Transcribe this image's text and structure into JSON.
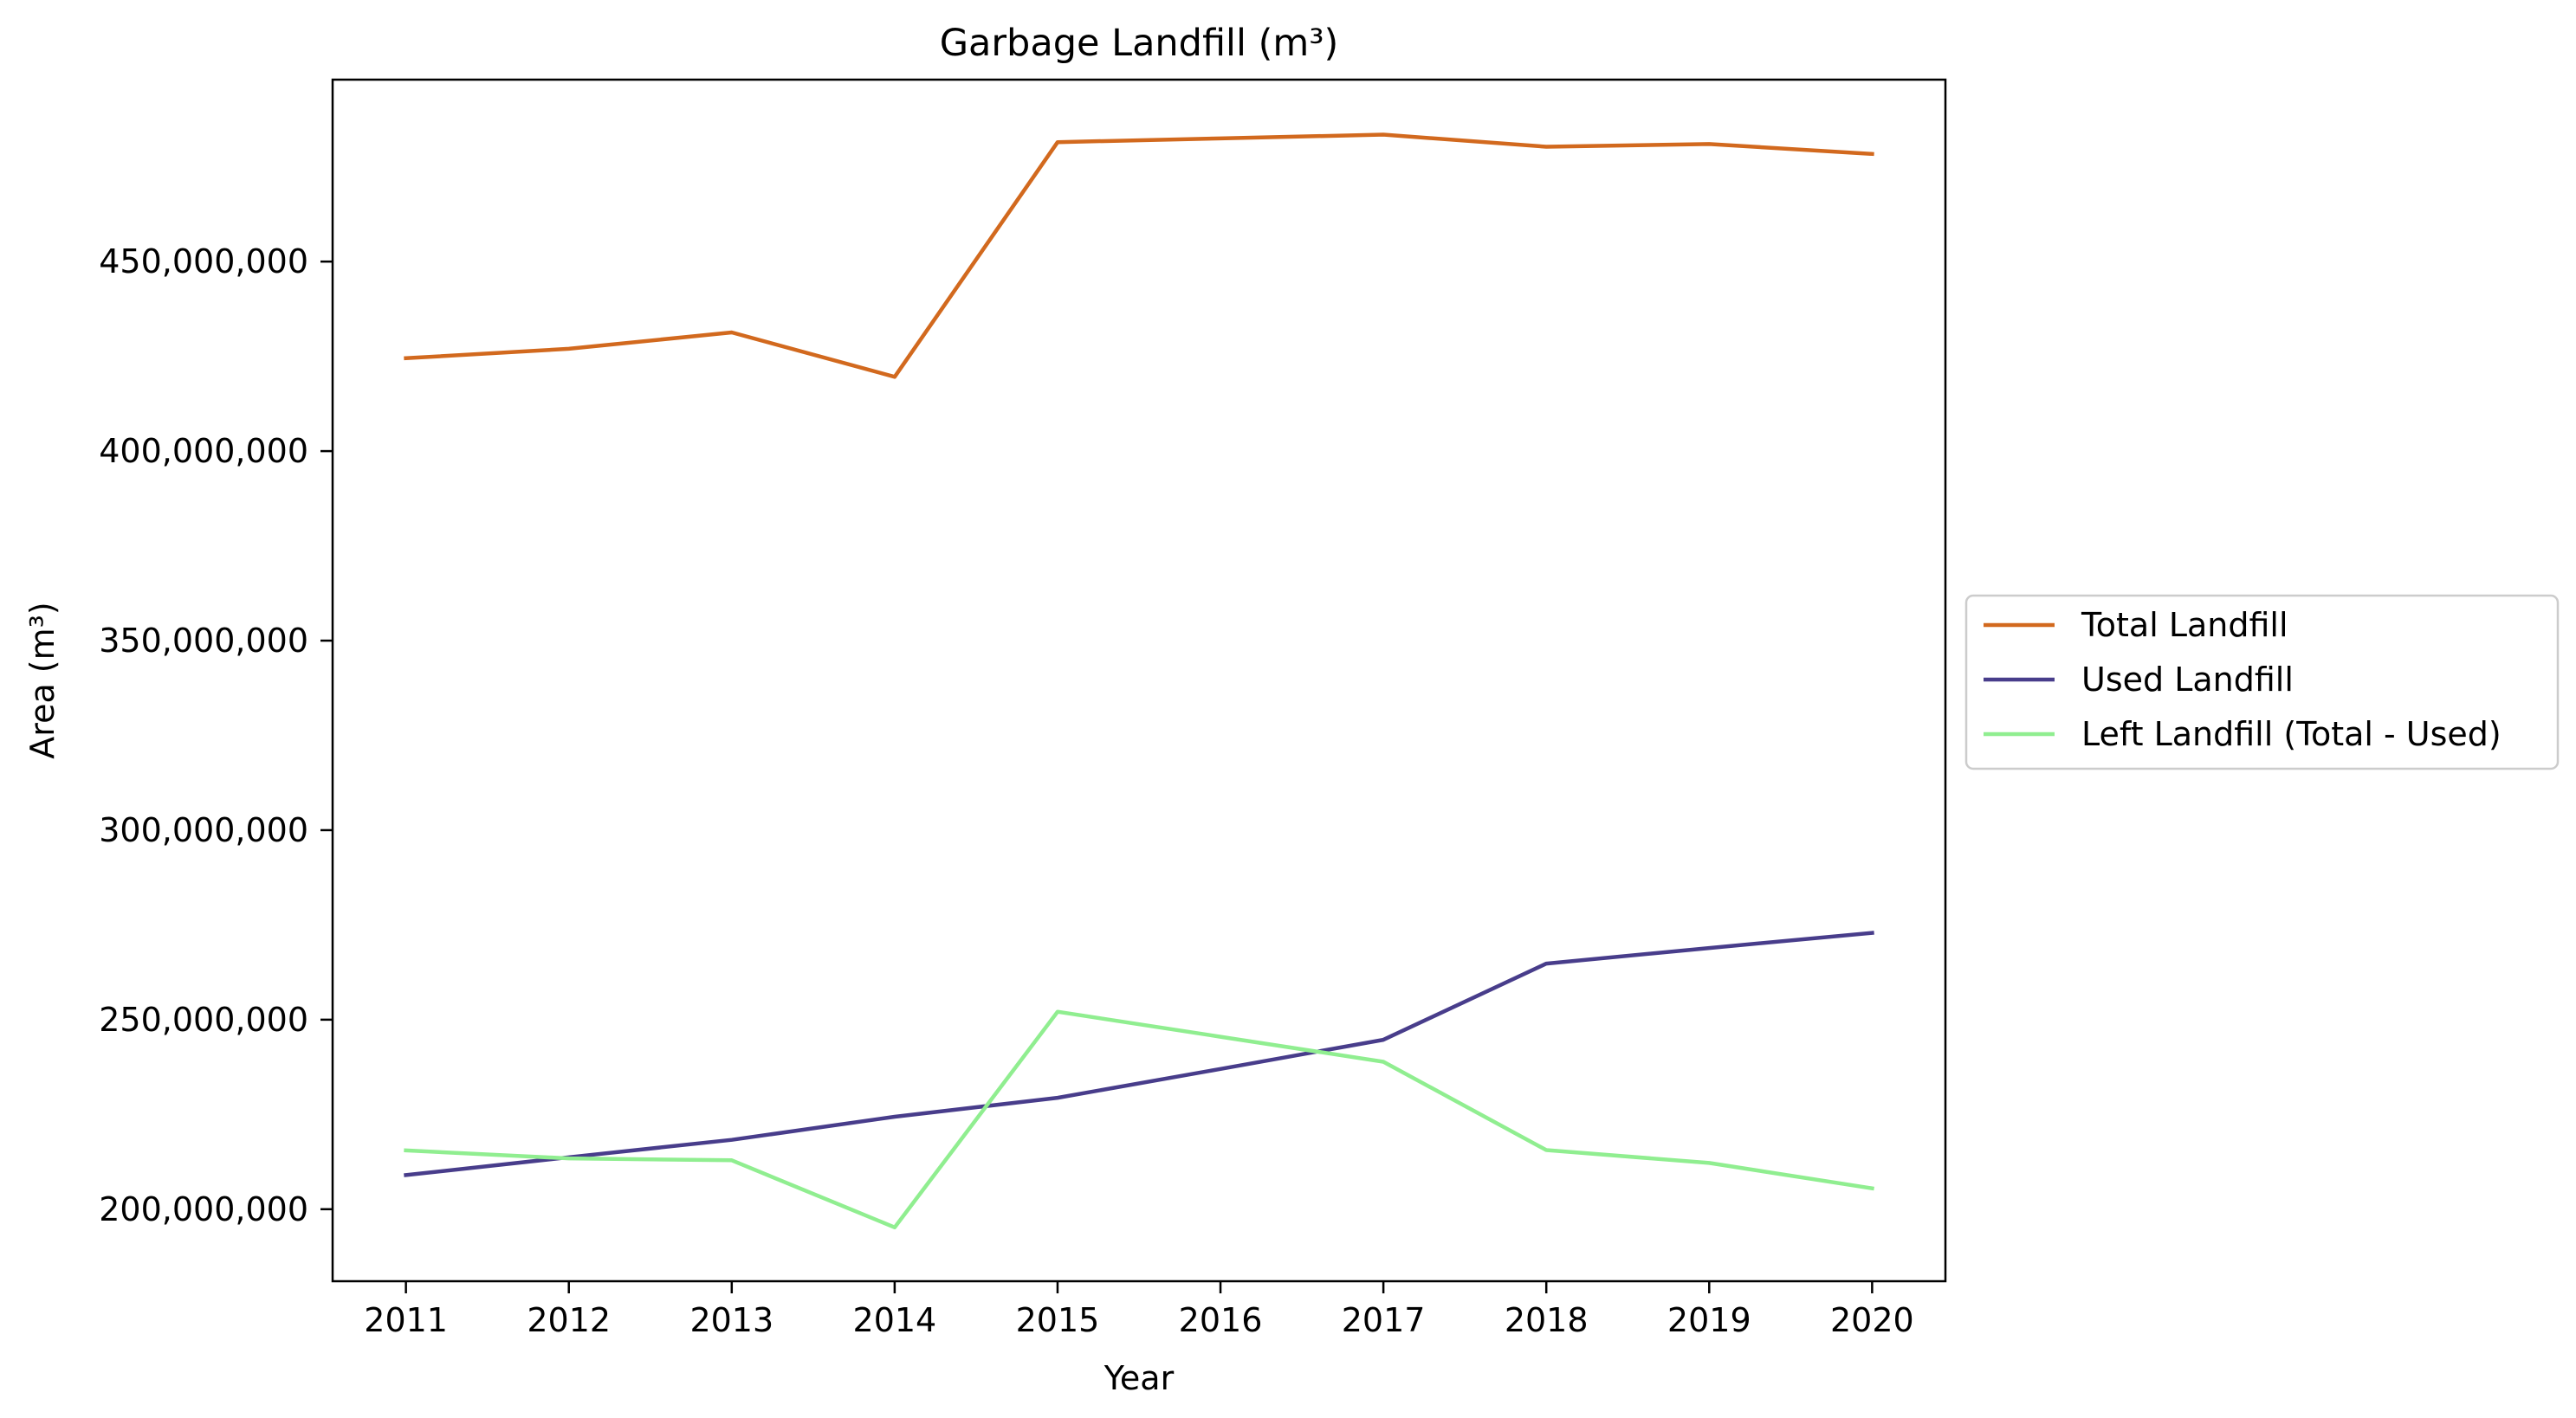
{
  "chart_data": {
    "type": "line",
    "title": "Garbage Landfill (m³)",
    "xlabel": "Year",
    "ylabel": "Area (m³)",
    "x": [
      2011,
      2012,
      2013,
      2014,
      2015,
      2016,
      2017,
      2018,
      2019,
      2020
    ],
    "x_tick_labels": [
      "2011",
      "2012",
      "2013",
      "2014",
      "2015",
      "2016",
      "2017",
      "2018",
      "2019",
      "2020"
    ],
    "y_ticks": [
      200000000,
      250000000,
      300000000,
      350000000,
      400000000,
      450000000
    ],
    "y_tick_labels": [
      "200,000,000",
      "250,000,000",
      "300,000,000",
      "350,000,000",
      "400,000,000",
      "450,000,000"
    ],
    "xlim": [
      2010.55,
      2020.45
    ],
    "ylim": [
      181000000,
      498000000
    ],
    "grid": false,
    "legend_position": "center-right-outside",
    "series": [
      {
        "name": "Total Landfill",
        "color": "#d2691e",
        "values": [
          424500000,
          427000000,
          431300000,
          419600000,
          481500000,
          482500000,
          483500000,
          480300000,
          481000000,
          478400000
        ]
      },
      {
        "name": "Used Landfill",
        "color": "#483d8b",
        "values": [
          209000000,
          213700000,
          218300000,
          224400000,
          229400000,
          237000000,
          244700000,
          264800000,
          268900000,
          272900000
        ]
      },
      {
        "name": "Left Landfill (Total - Used)",
        "color": "#90ee90",
        "values": [
          215500000,
          213400000,
          212900000,
          195200000,
          252100000,
          245500000,
          238900000,
          215600000,
          212200000,
          205500000
        ]
      }
    ]
  }
}
